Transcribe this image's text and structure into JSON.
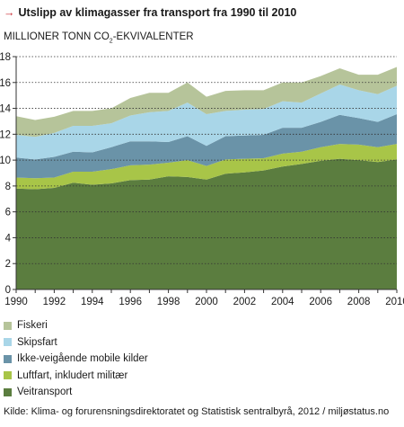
{
  "title": "Utslipp av klimagasser fra transport fra 1990 til 2010",
  "title_arrow": "→",
  "unit_label": {
    "main": "MILLIONER TONN CO",
    "sub": "2",
    "tail": "-EKVIVALENTER"
  },
  "source": "Kilde: Klima- og forurensningsdirektoratet og Statistisk sentralbyrå, 2012 / miljøstatus.no",
  "chart_data": {
    "type": "area",
    "stacked": true,
    "x": [
      1990,
      1991,
      1992,
      1993,
      1994,
      1995,
      1996,
      1997,
      1998,
      1999,
      2000,
      2001,
      2002,
      2003,
      2004,
      2005,
      2006,
      2007,
      2008,
      2009,
      2010
    ],
    "xticks": [
      1990,
      1992,
      1994,
      1996,
      1998,
      2000,
      2002,
      2004,
      2006,
      2008,
      2010
    ],
    "ylim": [
      0,
      18
    ],
    "yticks": [
      0,
      2,
      4,
      6,
      8,
      10,
      12,
      14,
      16,
      18
    ],
    "grid": "dotted-horizontal",
    "legend_position": "bottom",
    "series": [
      {
        "name": "Veitransport",
        "color": "#5b7d3f",
        "values": [
          7.8,
          7.75,
          7.85,
          8.25,
          8.1,
          8.2,
          8.45,
          8.5,
          8.75,
          8.7,
          8.5,
          8.95,
          9.05,
          9.2,
          9.5,
          9.7,
          9.95,
          10.1,
          10.0,
          9.85,
          10.05
        ]
      },
      {
        "name": "Luftfart, inkludert militær",
        "color": "#a8c548",
        "values": [
          0.85,
          0.85,
          0.8,
          0.85,
          1.0,
          1.1,
          1.15,
          1.15,
          1.05,
          1.3,
          1.05,
          1.1,
          1.05,
          0.95,
          1.0,
          0.95,
          1.05,
          1.15,
          1.2,
          1.15,
          1.2
        ]
      },
      {
        "name": "Ikke-veigående mobile kilder",
        "color": "#6a93a8",
        "values": [
          1.55,
          1.45,
          1.6,
          1.55,
          1.5,
          1.7,
          1.85,
          1.8,
          1.6,
          1.85,
          1.55,
          1.8,
          1.8,
          1.8,
          2.0,
          1.85,
          1.95,
          2.25,
          2.05,
          1.95,
          2.3
        ]
      },
      {
        "name": "Skipsfart",
        "color": "#a9d6e8",
        "values": [
          1.75,
          1.75,
          1.85,
          2.0,
          2.05,
          1.85,
          2.0,
          2.25,
          2.4,
          2.6,
          2.45,
          1.95,
          2.0,
          2.0,
          2.05,
          1.95,
          2.2,
          2.35,
          2.15,
          2.15,
          2.2
        ]
      },
      {
        "name": "Fiskeri",
        "color": "#b6c49a",
        "values": [
          1.45,
          1.3,
          1.25,
          1.15,
          1.15,
          1.15,
          1.35,
          1.5,
          1.4,
          1.55,
          1.35,
          1.55,
          1.5,
          1.45,
          1.45,
          1.55,
          1.35,
          1.25,
          1.2,
          1.5,
          1.45
        ]
      }
    ]
  }
}
